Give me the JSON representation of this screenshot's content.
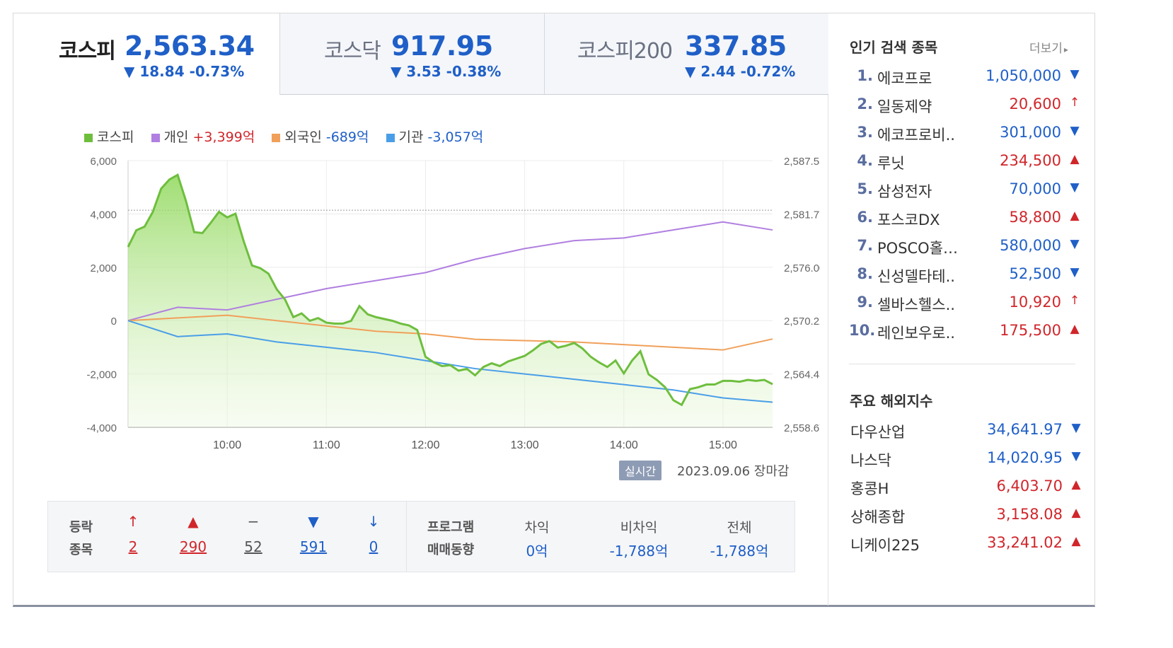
{
  "tabs": [
    {
      "name": "코스피",
      "value": "2,563.34",
      "change": "▼ 18.84 -0.73%"
    },
    {
      "name": "코스닥",
      "value": "917.95",
      "change": "▼ 3.53 -0.38%"
    },
    {
      "name": "코스피200",
      "value": "337.85",
      "change": "▼ 2.44 -0.72%"
    }
  ],
  "legend": {
    "kospi": "코스피",
    "individual_label": "개인",
    "individual_value": "+3,399억",
    "foreign_label": "외국인",
    "foreign_value": "-689억",
    "institution_label": "기관",
    "institution_value": "-3,057억"
  },
  "colors": {
    "kospi": "#6ebe3e",
    "individual": "#b07fe0",
    "foreign": "#f0a05a",
    "institution": "#4a9ee8",
    "up": "#d0262b",
    "down": "#1f5fc7"
  },
  "chart_data": {
    "type": "line",
    "x_ticks": [
      "10:00",
      "11:00",
      "12:00",
      "13:00",
      "14:00",
      "15:00"
    ],
    "y_left_ticks": [
      "6,000",
      "4,000",
      "2,000",
      "0",
      "-2,000",
      "-4,000"
    ],
    "y_right_ticks": [
      "2,587.55",
      "2,581.77",
      "2,576.00",
      "2,570.22",
      "2,564.45",
      "2,558.67"
    ],
    "ylim_left": [
      -4000,
      6000
    ],
    "ylim_right": [
      2558.67,
      2587.55
    ],
    "reference_value_right": 2582.18,
    "x_range": [
      "09:00",
      "15:30"
    ],
    "series": [
      {
        "name": "코스피",
        "axis": "right",
        "x": [
          "09:00",
          "09:05",
          "09:10",
          "09:15",
          "09:20",
          "09:25",
          "09:30",
          "09:35",
          "09:40",
          "09:45",
          "09:50",
          "09:55",
          "10:00",
          "10:05",
          "10:10",
          "10:15",
          "10:20",
          "10:25",
          "10:30",
          "10:35",
          "10:40",
          "10:45",
          "10:50",
          "10:55",
          "11:00",
          "11:05",
          "11:10",
          "11:15",
          "11:20",
          "11:25",
          "11:30",
          "11:35",
          "11:40",
          "11:45",
          "11:50",
          "11:55",
          "12:00",
          "12:05",
          "12:10",
          "12:15",
          "12:20",
          "12:25",
          "12:30",
          "12:35",
          "12:40",
          "12:45",
          "12:50",
          "12:55",
          "13:00",
          "13:05",
          "13:10",
          "13:15",
          "13:20",
          "13:25",
          "13:30",
          "13:35",
          "13:40",
          "13:45",
          "13:50",
          "13:55",
          "14:00",
          "14:05",
          "14:10",
          "14:15",
          "14:20",
          "14:25",
          "14:30",
          "14:35",
          "14:40",
          "14:45",
          "14:50",
          "14:55",
          "15:00",
          "15:05",
          "15:10",
          "15:15",
          "15:20",
          "15:25",
          "15:30"
        ],
        "values": [
          2578.2,
          2580.0,
          2580.4,
          2582.0,
          2584.5,
          2585.5,
          2586.0,
          2583.2,
          2579.8,
          2579.7,
          2580.8,
          2582.0,
          2581.4,
          2581.8,
          2578.8,
          2576.2,
          2575.9,
          2575.3,
          2573.6,
          2572.5,
          2570.6,
          2571.0,
          2570.2,
          2570.5,
          2570.0,
          2569.9,
          2569.9,
          2570.2,
          2571.8,
          2570.9,
          2570.6,
          2570.4,
          2570.2,
          2569.9,
          2569.7,
          2569.2,
          2566.3,
          2565.7,
          2565.3,
          2565.4,
          2564.8,
          2565.0,
          2564.3,
          2565.2,
          2565.6,
          2565.3,
          2565.8,
          2566.1,
          2566.4,
          2567.0,
          2567.7,
          2568.0,
          2567.3,
          2567.5,
          2567.8,
          2567.2,
          2566.3,
          2565.7,
          2565.2,
          2565.9,
          2564.5,
          2565.9,
          2566.9,
          2564.4,
          2563.8,
          2563.0,
          2561.6,
          2561.1,
          2562.8,
          2563.0,
          2563.3,
          2563.3,
          2563.7,
          2563.7,
          2563.6,
          2563.8,
          2563.7,
          2563.8,
          2563.34
        ]
      },
      {
        "name": "개인",
        "axis": "left",
        "x": [
          "09:00",
          "09:30",
          "10:00",
          "10:30",
          "11:00",
          "11:30",
          "12:00",
          "12:30",
          "13:00",
          "13:30",
          "14:00",
          "14:30",
          "15:00",
          "15:30"
        ],
        "values": [
          0,
          500,
          400,
          800,
          1200,
          1500,
          1800,
          2300,
          2700,
          3000,
          3100,
          3400,
          3700,
          3399
        ]
      },
      {
        "name": "외국인",
        "axis": "left",
        "x": [
          "09:00",
          "09:30",
          "10:00",
          "10:30",
          "11:00",
          "11:30",
          "12:00",
          "12:30",
          "13:00",
          "13:30",
          "14:00",
          "14:30",
          "15:00",
          "15:30"
        ],
        "values": [
          0,
          100,
          200,
          0,
          -200,
          -400,
          -500,
          -700,
          -750,
          -800,
          -900,
          -1000,
          -1100,
          -689
        ]
      },
      {
        "name": "기관",
        "axis": "left",
        "x": [
          "09:00",
          "09:30",
          "10:00",
          "10:30",
          "11:00",
          "11:30",
          "12:00",
          "12:30",
          "13:00",
          "13:30",
          "14:00",
          "14:30",
          "15:00",
          "15:30"
        ],
        "values": [
          0,
          -600,
          -500,
          -800,
          -1000,
          -1200,
          -1500,
          -1800,
          -2000,
          -2200,
          -2400,
          -2600,
          -2900,
          -3057
        ]
      }
    ]
  },
  "realtime": {
    "badge": "실시간",
    "date": "2023.09.06 장마감"
  },
  "advance_decline": {
    "label_line1": "등락",
    "label_line2": "종목",
    "items": [
      {
        "symbol": "↑",
        "count": "2",
        "tone": "up"
      },
      {
        "symbol": "▲",
        "count": "290",
        "tone": "up"
      },
      {
        "symbol": "−",
        "count": "52",
        "tone": "flat"
      },
      {
        "symbol": "▼",
        "count": "591",
        "tone": "down"
      },
      {
        "symbol": "↓",
        "count": "0",
        "tone": "down"
      }
    ]
  },
  "program_trading": {
    "label_line1": "프로그램",
    "label_line2": "매매동향",
    "columns": [
      {
        "header": "차익",
        "value": "0억"
      },
      {
        "header": "비차익",
        "value": "-1,788억"
      },
      {
        "header": "전체",
        "value": "-1,788억"
      }
    ]
  },
  "popular": {
    "title": "인기 검색 종목",
    "more": "더보기",
    "items": [
      {
        "rank": "1.",
        "name": "에코프로",
        "price": "1,050,000",
        "arrow": "▼",
        "tone": "down"
      },
      {
        "rank": "2.",
        "name": "일동제약",
        "price": "20,600",
        "arrow": "↑",
        "tone": "up"
      },
      {
        "rank": "3.",
        "name": "에코프로비..",
        "price": "301,000",
        "arrow": "▼",
        "tone": "down"
      },
      {
        "rank": "4.",
        "name": "루닛",
        "price": "234,500",
        "arrow": "▲",
        "tone": "up"
      },
      {
        "rank": "5.",
        "name": "삼성전자",
        "price": "70,000",
        "arrow": "▼",
        "tone": "down"
      },
      {
        "rank": "6.",
        "name": "포스코DX",
        "price": "58,800",
        "arrow": "▲",
        "tone": "up"
      },
      {
        "rank": "7.",
        "name": "POSCO홀…",
        "price": "580,000",
        "arrow": "▼",
        "tone": "down"
      },
      {
        "rank": "8.",
        "name": "신성델타테..",
        "price": "52,500",
        "arrow": "▼",
        "tone": "down"
      },
      {
        "rank": "9.",
        "name": "셀바스헬스..",
        "price": "10,920",
        "arrow": "↑",
        "tone": "up"
      },
      {
        "rank": "10.",
        "name": "레인보우로..",
        "price": "175,500",
        "arrow": "▲",
        "tone": "up"
      }
    ]
  },
  "overseas": {
    "title": "주요 해외지수",
    "items": [
      {
        "name": "다우산업",
        "value": "34,641.97",
        "arrow": "▼",
        "tone": "down"
      },
      {
        "name": "나스닥",
        "value": "14,020.95",
        "arrow": "▼",
        "tone": "down"
      },
      {
        "name": "홍콩H",
        "value": "6,403.70",
        "arrow": "▲",
        "tone": "up"
      },
      {
        "name": "상해종합",
        "value": "3,158.08",
        "arrow": "▲",
        "tone": "up"
      },
      {
        "name": "니케이225",
        "value": "33,241.02",
        "arrow": "▲",
        "tone": "up"
      }
    ]
  }
}
